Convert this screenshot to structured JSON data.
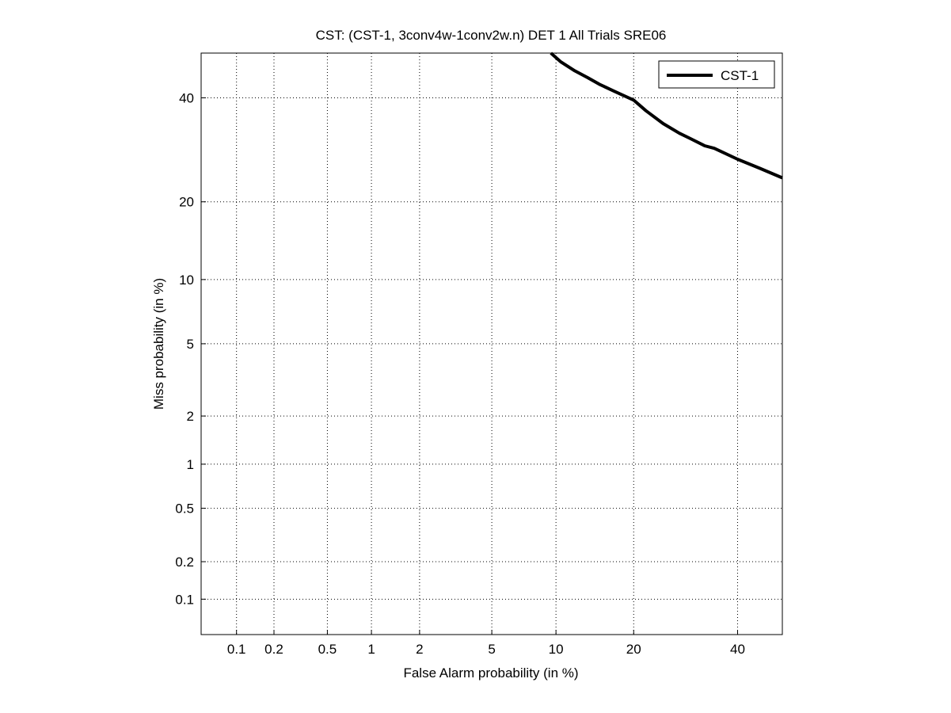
{
  "chart_data": {
    "type": "line",
    "title": "CST: (CST-1, 3conv4w-1conv2w.n) DET 1 All Trials SRE06",
    "xlabel": "False Alarm probability (in %)",
    "ylabel": "Miss probability (in %)",
    "x_scale": "probit",
    "y_scale": "probit",
    "xlim": [
      0.05,
      50
    ],
    "ylim": [
      0.05,
      50
    ],
    "x_ticks": [
      0.1,
      0.2,
      0.5,
      1,
      2,
      5,
      10,
      20,
      40
    ],
    "x_tick_labels": [
      "0.1",
      "0.2",
      "0.5",
      "1",
      "2",
      "5",
      "10",
      "20",
      "40"
    ],
    "y_ticks": [
      0.1,
      0.2,
      0.5,
      1,
      2,
      5,
      10,
      20,
      40
    ],
    "y_tick_labels": [
      "0.1",
      "0.2",
      "0.5",
      "1",
      "2",
      "5",
      "10",
      "20",
      "40"
    ],
    "grid": true,
    "legend_position": "top-right",
    "line_color": "#000000",
    "series": [
      {
        "name": "CST-1",
        "x": [
          9.5,
          10.5,
          12,
          13.5,
          15,
          17,
          20,
          22,
          25,
          28,
          30,
          33,
          35,
          40,
          45,
          50
        ],
        "y": [
          50,
          48,
          46,
          44.5,
          43,
          41.5,
          39.5,
          37.2,
          34.5,
          32.5,
          31.5,
          30,
          29.5,
          27.4,
          25.7,
          24
        ]
      }
    ]
  }
}
